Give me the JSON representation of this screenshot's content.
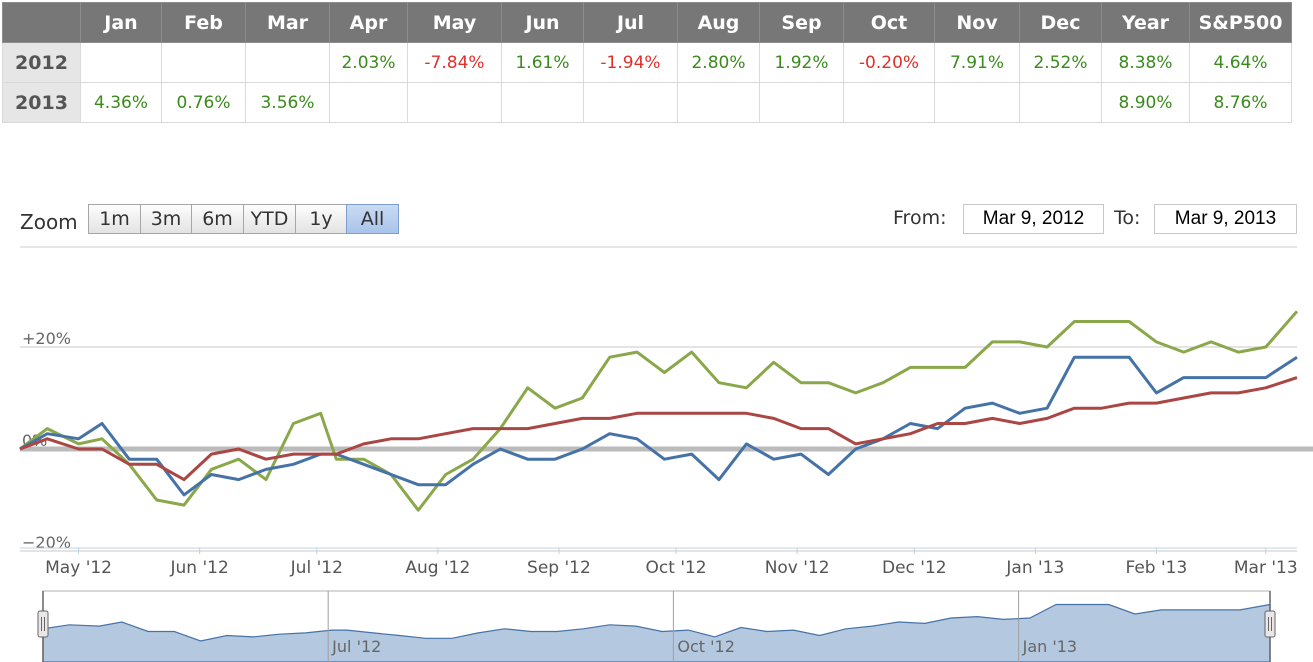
{
  "returns_table": {
    "corner": "",
    "headers": [
      "Jan",
      "Feb",
      "Mar",
      "Apr",
      "May",
      "Jun",
      "Jul",
      "Aug",
      "Sep",
      "Oct",
      "Nov",
      "Dec",
      "Year",
      "S&P500"
    ],
    "rows": [
      {
        "year": "2012",
        "cells": [
          "",
          "",
          "",
          "2.03%",
          "-7.84%",
          "1.61%",
          "-1.94%",
          "2.80%",
          "1.92%",
          "-0.20%",
          "7.91%",
          "2.52%",
          "8.38%",
          "4.64%"
        ]
      },
      {
        "year": "2013",
        "cells": [
          "4.36%",
          "0.76%",
          "3.56%",
          "",
          "",
          "",
          "",
          "",
          "",
          "",
          "",
          "",
          "8.90%",
          "8.76%"
        ]
      }
    ],
    "positive_color": "#3a8a1e",
    "negative_color": "#e0302a"
  },
  "range_selector": {
    "zoom_label": "Zoom",
    "buttons": [
      "1m",
      "3m",
      "6m",
      "YTD",
      "1y",
      "All"
    ],
    "active": "All",
    "from_label": "From:",
    "from_value": "Mar 9, 2012",
    "to_label": "To:",
    "to_value": "Mar 9, 2013"
  },
  "chart_data": {
    "type": "line",
    "y_tick_labels": [
      "+20%",
      "0%",
      "−20%"
    ],
    "y_ticks": [
      20,
      0,
      -20
    ],
    "ylim": [
      -20,
      27
    ],
    "x_tick_labels": [
      "May '12",
      "Jun '12",
      "Jul '12",
      "Aug '12",
      "Sep '12",
      "Oct '12",
      "Nov '12",
      "Dec '12",
      "Jan '13",
      "Feb '13",
      "Mar '13"
    ],
    "x_ticks": [
      "2012-05-01",
      "2012-06-01",
      "2012-07-01",
      "2012-08-01",
      "2012-09-01",
      "2012-10-01",
      "2012-11-01",
      "2012-12-01",
      "2013-01-01",
      "2013-02-01",
      "2013-03-01"
    ],
    "xlim": [
      "2012-04-16",
      "2013-03-09"
    ],
    "zero_line": 0,
    "series": [
      {
        "color": "#8aa84a",
        "x": [
          "2012-04-16",
          "2012-04-23",
          "2012-05-01",
          "2012-05-07",
          "2012-05-14",
          "2012-05-21",
          "2012-05-28",
          "2012-06-04",
          "2012-06-11",
          "2012-06-18",
          "2012-06-25",
          "2012-07-02",
          "2012-07-06",
          "2012-07-13",
          "2012-07-20",
          "2012-07-27",
          "2012-08-03",
          "2012-08-10",
          "2012-08-17",
          "2012-08-24",
          "2012-08-31",
          "2012-09-07",
          "2012-09-14",
          "2012-09-21",
          "2012-09-28",
          "2012-10-05",
          "2012-10-12",
          "2012-10-19",
          "2012-10-26",
          "2012-11-02",
          "2012-11-09",
          "2012-11-16",
          "2012-11-23",
          "2012-11-30",
          "2012-12-07",
          "2012-12-14",
          "2012-12-21",
          "2012-12-28",
          "2013-01-04",
          "2013-01-11",
          "2013-01-18",
          "2013-01-25",
          "2013-02-01",
          "2013-02-08",
          "2013-02-15",
          "2013-02-22",
          "2013-03-01",
          "2013-03-09"
        ],
        "y": [
          0,
          4,
          1,
          2,
          -3,
          -10,
          -11,
          -4,
          -2,
          -6,
          5,
          7,
          -2,
          -2,
          -5,
          -12,
          -5,
          -2,
          4,
          12,
          8,
          10,
          18,
          19,
          15,
          19,
          13,
          12,
          17,
          13,
          13,
          11,
          13,
          16,
          16,
          16,
          21,
          21,
          20,
          25,
          25,
          25,
          21,
          19,
          21,
          19,
          20,
          27
        ]
      },
      {
        "color": "#4572a7",
        "x": [
          "2012-04-16",
          "2012-04-23",
          "2012-05-01",
          "2012-05-07",
          "2012-05-14",
          "2012-05-21",
          "2012-05-28",
          "2012-06-04",
          "2012-06-11",
          "2012-06-18",
          "2012-06-25",
          "2012-07-02",
          "2012-07-06",
          "2012-07-13",
          "2012-07-20",
          "2012-07-27",
          "2012-08-03",
          "2012-08-10",
          "2012-08-17",
          "2012-08-24",
          "2012-08-31",
          "2012-09-07",
          "2012-09-14",
          "2012-09-21",
          "2012-09-28",
          "2012-10-05",
          "2012-10-12",
          "2012-10-19",
          "2012-10-26",
          "2012-11-02",
          "2012-11-09",
          "2012-11-16",
          "2012-11-23",
          "2012-11-30",
          "2012-12-07",
          "2012-12-14",
          "2012-12-21",
          "2012-12-28",
          "2013-01-04",
          "2013-01-11",
          "2013-01-18",
          "2013-01-25",
          "2013-02-01",
          "2013-02-08",
          "2013-02-15",
          "2013-02-22",
          "2013-03-01",
          "2013-03-09"
        ],
        "y": [
          0,
          3,
          2,
          5,
          -2,
          -2,
          -9,
          -5,
          -6,
          -4,
          -3,
          -1,
          -1,
          -3,
          -5,
          -7,
          -7,
          -3,
          0,
          -2,
          -2,
          0,
          3,
          2,
          -2,
          -1,
          -6,
          1,
          -2,
          -1,
          -5,
          0,
          2,
          5,
          4,
          8,
          9,
          7,
          8,
          18,
          18,
          18,
          11,
          14,
          14,
          14,
          14,
          18
        ]
      },
      {
        "color": "#aa4643",
        "x": [
          "2012-04-16",
          "2012-04-23",
          "2012-05-01",
          "2012-05-07",
          "2012-05-14",
          "2012-05-21",
          "2012-05-28",
          "2012-06-04",
          "2012-06-11",
          "2012-06-18",
          "2012-06-25",
          "2012-07-02",
          "2012-07-06",
          "2012-07-13",
          "2012-07-20",
          "2012-07-27",
          "2012-08-03",
          "2012-08-10",
          "2012-08-17",
          "2012-08-24",
          "2012-08-31",
          "2012-09-07",
          "2012-09-14",
          "2012-09-21",
          "2012-09-28",
          "2012-10-05",
          "2012-10-12",
          "2012-10-19",
          "2012-10-26",
          "2012-11-02",
          "2012-11-09",
          "2012-11-16",
          "2012-11-23",
          "2012-11-30",
          "2012-12-07",
          "2012-12-14",
          "2012-12-21",
          "2012-12-28",
          "2013-01-04",
          "2013-01-11",
          "2013-01-18",
          "2013-01-25",
          "2013-02-01",
          "2013-02-08",
          "2013-02-15",
          "2013-02-22",
          "2013-03-01",
          "2013-03-09"
        ],
        "y": [
          0,
          2,
          0,
          0,
          -3,
          -3,
          -6,
          -1,
          0,
          -2,
          -1,
          -1,
          -1,
          1,
          2,
          2,
          3,
          4,
          4,
          4,
          5,
          6,
          6,
          7,
          7,
          7,
          7,
          7,
          6,
          4,
          4,
          1,
          2,
          3,
          5,
          5,
          6,
          5,
          6,
          8,
          8,
          9,
          9,
          10,
          11,
          11,
          12,
          14
        ]
      }
    ]
  },
  "navigator": {
    "x_tick_labels": [
      "Jul '12",
      "Oct '12",
      "Jan '13"
    ],
    "x_ticks": [
      "2012-07-01",
      "2012-10-01",
      "2013-01-01"
    ]
  }
}
